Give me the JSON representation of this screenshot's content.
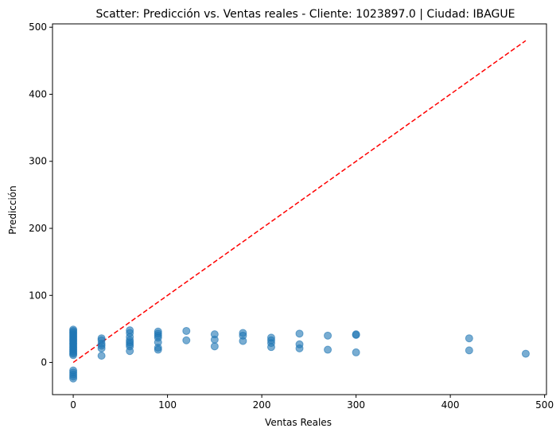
{
  "chart_data": {
    "type": "scatter",
    "title": "Scatter: Predicción vs. Ventas reales - Cliente: 1023897.0 | Ciudad: IBAGUE",
    "xlabel": "Ventas Reales",
    "ylabel": "Predicción",
    "xlim": [
      -22,
      502
    ],
    "ylim": [
      -48,
      505
    ],
    "xticks": [
      0,
      100,
      200,
      300,
      400,
      500
    ],
    "yticks": [
      0,
      100,
      200,
      300,
      400,
      500
    ],
    "grid": false,
    "colors": {
      "points": "#1f77b4",
      "reference_line": "#ff0000"
    },
    "reference_line": {
      "x": [
        0,
        480
      ],
      "y": [
        0,
        480
      ]
    },
    "points": [
      {
        "x": 0,
        "y": 49
      },
      {
        "x": 0,
        "y": 47
      },
      {
        "x": 0,
        "y": 45
      },
      {
        "x": 0,
        "y": 43
      },
      {
        "x": 0,
        "y": 41
      },
      {
        "x": 0,
        "y": 39
      },
      {
        "x": 0,
        "y": 37
      },
      {
        "x": 0,
        "y": 35
      },
      {
        "x": 0,
        "y": 33
      },
      {
        "x": 0,
        "y": 31
      },
      {
        "x": 0,
        "y": 29
      },
      {
        "x": 0,
        "y": 27
      },
      {
        "x": 0,
        "y": 25
      },
      {
        "x": 0,
        "y": 23
      },
      {
        "x": 0,
        "y": 21
      },
      {
        "x": 0,
        "y": 19
      },
      {
        "x": 0,
        "y": 17
      },
      {
        "x": 0,
        "y": 15
      },
      {
        "x": 0,
        "y": 13
      },
      {
        "x": 0,
        "y": 11
      },
      {
        "x": 0,
        "y": -12
      },
      {
        "x": 0,
        "y": -15
      },
      {
        "x": 0,
        "y": -18
      },
      {
        "x": 0,
        "y": -21
      },
      {
        "x": 0,
        "y": -24
      },
      {
        "x": 30,
        "y": 36
      },
      {
        "x": 30,
        "y": 33
      },
      {
        "x": 30,
        "y": 28
      },
      {
        "x": 30,
        "y": 25
      },
      {
        "x": 30,
        "y": 21
      },
      {
        "x": 30,
        "y": 10
      },
      {
        "x": 60,
        "y": 48
      },
      {
        "x": 60,
        "y": 44
      },
      {
        "x": 60,
        "y": 38
      },
      {
        "x": 60,
        "y": 33
      },
      {
        "x": 60,
        "y": 30
      },
      {
        "x": 60,
        "y": 27
      },
      {
        "x": 60,
        "y": 24
      },
      {
        "x": 60,
        "y": 17
      },
      {
        "x": 90,
        "y": 46
      },
      {
        "x": 90,
        "y": 43
      },
      {
        "x": 90,
        "y": 40
      },
      {
        "x": 90,
        "y": 37
      },
      {
        "x": 90,
        "y": 30
      },
      {
        "x": 90,
        "y": 22
      },
      {
        "x": 90,
        "y": 19
      },
      {
        "x": 120,
        "y": 47
      },
      {
        "x": 120,
        "y": 33
      },
      {
        "x": 150,
        "y": 42
      },
      {
        "x": 150,
        "y": 34
      },
      {
        "x": 150,
        "y": 24
      },
      {
        "x": 180,
        "y": 44
      },
      {
        "x": 180,
        "y": 40
      },
      {
        "x": 180,
        "y": 32
      },
      {
        "x": 210,
        "y": 37
      },
      {
        "x": 210,
        "y": 33
      },
      {
        "x": 210,
        "y": 29
      },
      {
        "x": 210,
        "y": 23
      },
      {
        "x": 240,
        "y": 43
      },
      {
        "x": 240,
        "y": 27
      },
      {
        "x": 240,
        "y": 21
      },
      {
        "x": 270,
        "y": 40
      },
      {
        "x": 270,
        "y": 19
      },
      {
        "x": 300,
        "y": 42
      },
      {
        "x": 300,
        "y": 41
      },
      {
        "x": 300,
        "y": 15
      },
      {
        "x": 420,
        "y": 36
      },
      {
        "x": 420,
        "y": 18
      },
      {
        "x": 480,
        "y": 13
      }
    ]
  }
}
